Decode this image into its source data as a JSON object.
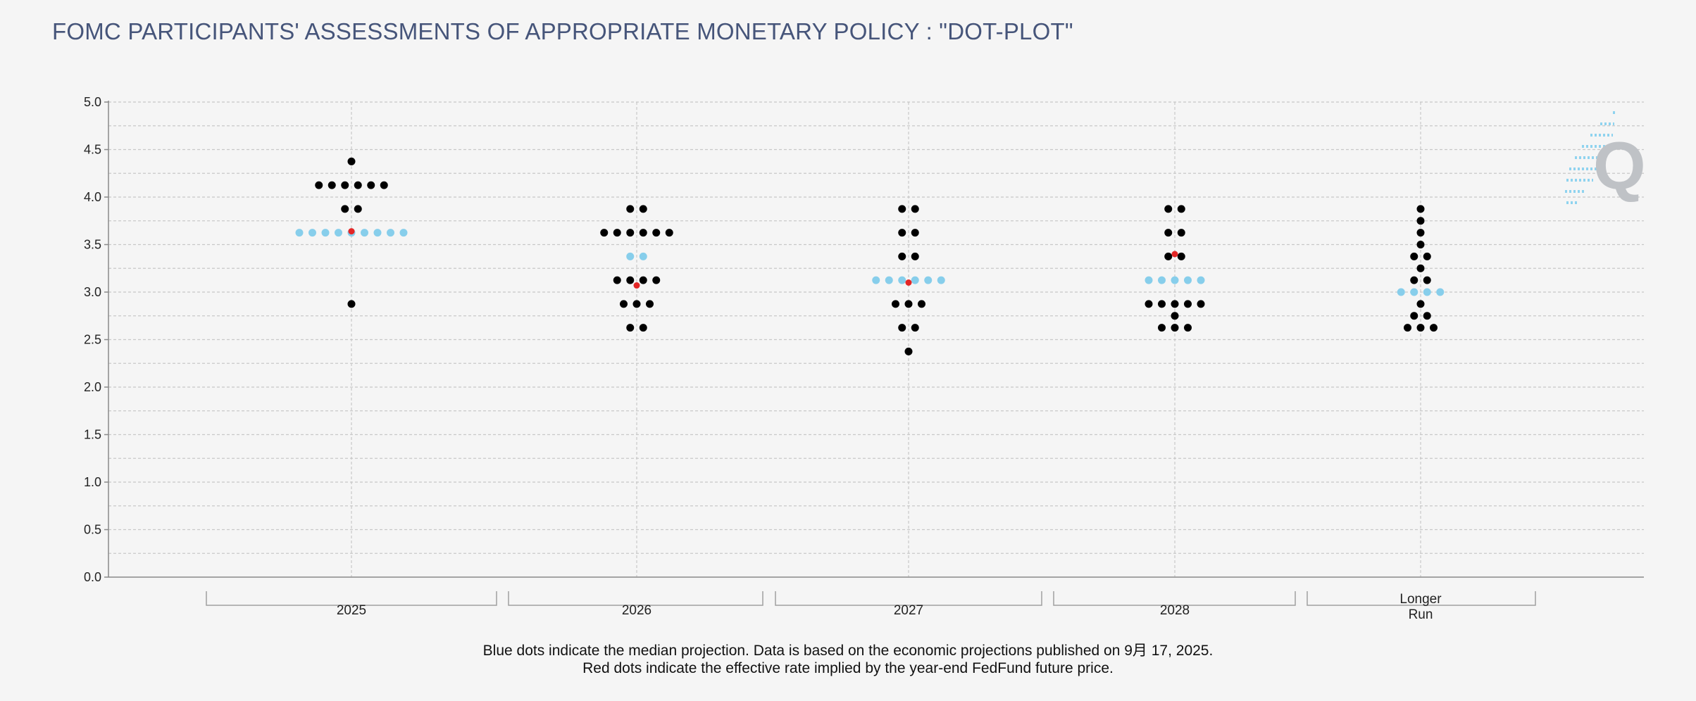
{
  "title": "FOMC PARTICIPANTS' ASSESSMENTS OF APPROPRIATE MONETARY POLICY : \"DOT-PLOT\"",
  "footnotes": {
    "line1": "Blue dots indicate the median projection. Data is based on the economic projections published on 9月 17, 2025.",
    "line2": "Red dots indicate the effective rate implied by the year-end FedFund future price."
  },
  "logo": {
    "text": "Q",
    "icon": "q-logo-icon"
  },
  "colors": {
    "participant": "#000000",
    "median": "#87ceeb",
    "implied": "#e32626",
    "grid": "#c8c8c8",
    "title": "#46557a"
  },
  "chart_data": {
    "type": "scatter",
    "title": "FOMC PARTICIPANTS' ASSESSMENTS OF APPROPRIATE MONETARY POLICY : \"DOT-PLOT\"",
    "xlabel": "",
    "ylabel": "",
    "ylim": [
      0,
      5
    ],
    "yticks": [
      "0.0",
      "0.5",
      "1.0",
      "1.5",
      "2.0",
      "2.5",
      "3.0",
      "3.5",
      "4.0",
      "4.5",
      "5.0"
    ],
    "grid": true,
    "categories": [
      {
        "label": "2025",
        "dots": [
          {
            "rate": 4.375,
            "count": 1
          },
          {
            "rate": 4.125,
            "count": 6
          },
          {
            "rate": 3.875,
            "count": 2
          },
          {
            "rate": 3.625,
            "count": 9
          },
          {
            "rate": 2.875,
            "count": 1
          }
        ],
        "median": 3.625,
        "implied": 3.64
      },
      {
        "label": "2026",
        "dots": [
          {
            "rate": 3.875,
            "count": 2
          },
          {
            "rate": 3.625,
            "count": 6
          },
          {
            "rate": 3.375,
            "count": 2
          },
          {
            "rate": 3.125,
            "count": 4
          },
          {
            "rate": 2.875,
            "count": 3
          },
          {
            "rate": 2.625,
            "count": 2
          }
        ],
        "median": 3.375,
        "implied": 3.07
      },
      {
        "label": "2027",
        "dots": [
          {
            "rate": 3.875,
            "count": 2
          },
          {
            "rate": 3.625,
            "count": 2
          },
          {
            "rate": 3.375,
            "count": 2
          },
          {
            "rate": 3.125,
            "count": 6
          },
          {
            "rate": 2.875,
            "count": 3
          },
          {
            "rate": 2.625,
            "count": 2
          },
          {
            "rate": 2.375,
            "count": 1
          }
        ],
        "median": 3.125,
        "implied": 3.1
      },
      {
        "label": "2028",
        "dots": [
          {
            "rate": 3.875,
            "count": 2
          },
          {
            "rate": 3.625,
            "count": 2
          },
          {
            "rate": 3.375,
            "count": 2
          },
          {
            "rate": 3.125,
            "count": 5
          },
          {
            "rate": 2.875,
            "count": 5
          },
          {
            "rate": 2.75,
            "count": 1
          },
          {
            "rate": 2.625,
            "count": 3
          }
        ],
        "median": 3.125,
        "implied": 3.4
      },
      {
        "label": "Longer Run",
        "label_lines": [
          "Longer",
          "Run"
        ],
        "dots": [
          {
            "rate": 3.875,
            "count": 1
          },
          {
            "rate": 3.75,
            "count": 1
          },
          {
            "rate": 3.625,
            "count": 1
          },
          {
            "rate": 3.5,
            "count": 1
          },
          {
            "rate": 3.375,
            "count": 2
          },
          {
            "rate": 3.25,
            "count": 1
          },
          {
            "rate": 3.125,
            "count": 2
          },
          {
            "rate": 3.0,
            "count": 4
          },
          {
            "rate": 2.875,
            "count": 1
          },
          {
            "rate": 2.75,
            "count": 2
          },
          {
            "rate": 2.625,
            "count": 3
          }
        ],
        "median": 3.0,
        "implied": null
      }
    ]
  }
}
